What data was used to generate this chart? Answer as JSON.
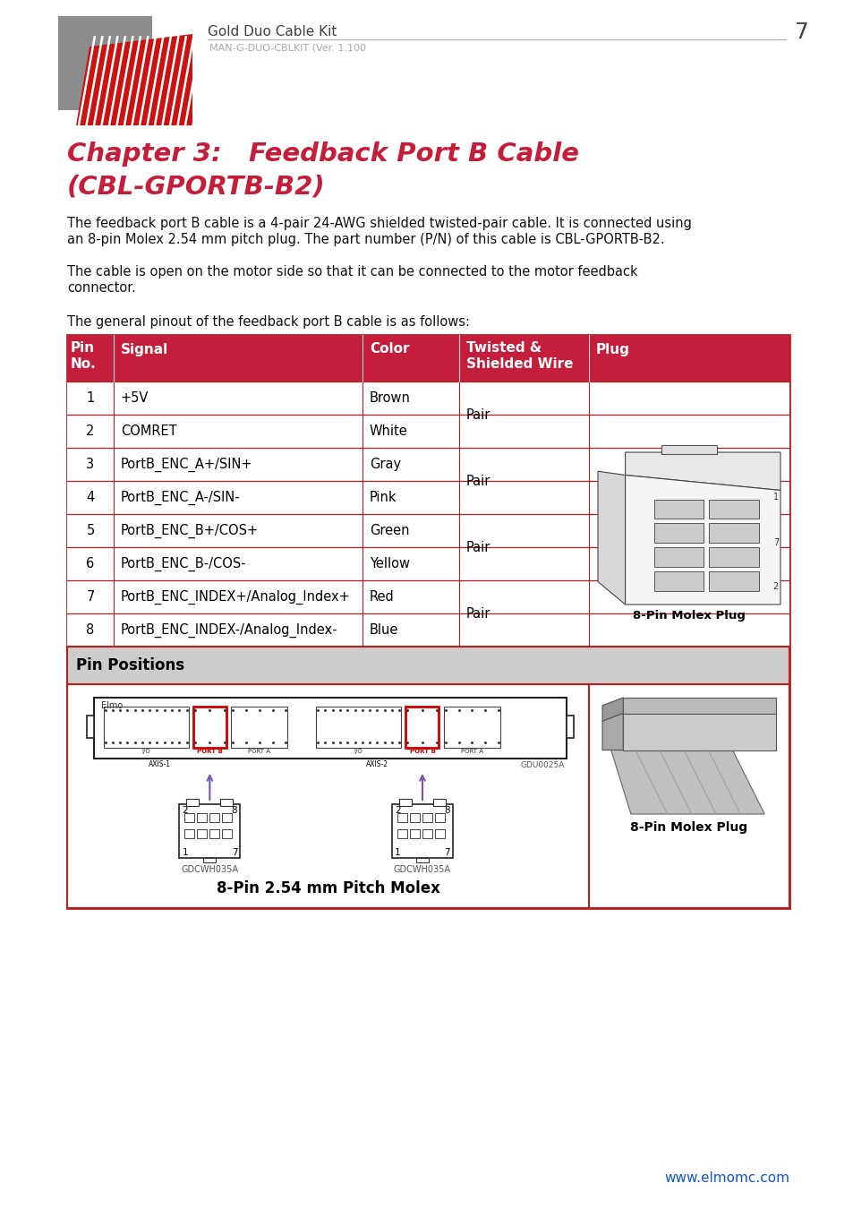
{
  "page_title": "Gold Duo Cable Kit",
  "page_subtitle": "MAN-G-DUO-CBLKIT (Ver. 1.100",
  "page_number": "7",
  "chapter_title_line1": "Chapter 3:   Feedback Port B Cable",
  "chapter_title_line2": "(CBL-GPORTB-B2)",
  "para1a": "The feedback port B cable is a 4-pair 24-AWG shielded twisted-pair cable. It is connected using",
  "para1b": "an 8-pin Molex 2.54 mm pitch plug. The part number (P/N) of this cable is CBL-GPORTB-B2.",
  "para2a": "The cable is open on the motor side so that it can be connected to the motor feedback",
  "para2b": "connector.",
  "para3": "The general pinout of the feedback port B cable is as follows:",
  "table_rows": [
    [
      "1",
      "+5V",
      "Brown"
    ],
    [
      "2",
      "COMRET",
      "White"
    ],
    [
      "3",
      "PortB_ENC_A+/SIN+",
      "Gray"
    ],
    [
      "4",
      "PortB_ENC_A-/SIN-",
      "Pink"
    ],
    [
      "5",
      "PortB_ENC_B+/COS+",
      "Green"
    ],
    [
      "6",
      "PortB_ENC_B-/COS-",
      "Yellow"
    ],
    [
      "7",
      "PortB_ENC_INDEX+/Analog_Index+",
      "Red"
    ],
    [
      "8",
      "PortB_ENC_INDEX-/Analog_Index-",
      "Blue"
    ]
  ],
  "pair_rows": [
    [
      0,
      1
    ],
    [
      2,
      3
    ],
    [
      4,
      5
    ],
    [
      6,
      7
    ]
  ],
  "pin_positions_label": "Pin Positions",
  "bottom_label": "8-Pin 2.54 mm Pitch Molex",
  "molex_label": "8-Pin Molex Plug",
  "website": "www.elmomc.com",
  "header_red": "#C41E3A",
  "table_border": "#B22222",
  "chapter_color": "#C41E3A",
  "website_color": "#1155CC",
  "logo_gray": "#8C8C8C",
  "logo_red": "#CC1111"
}
